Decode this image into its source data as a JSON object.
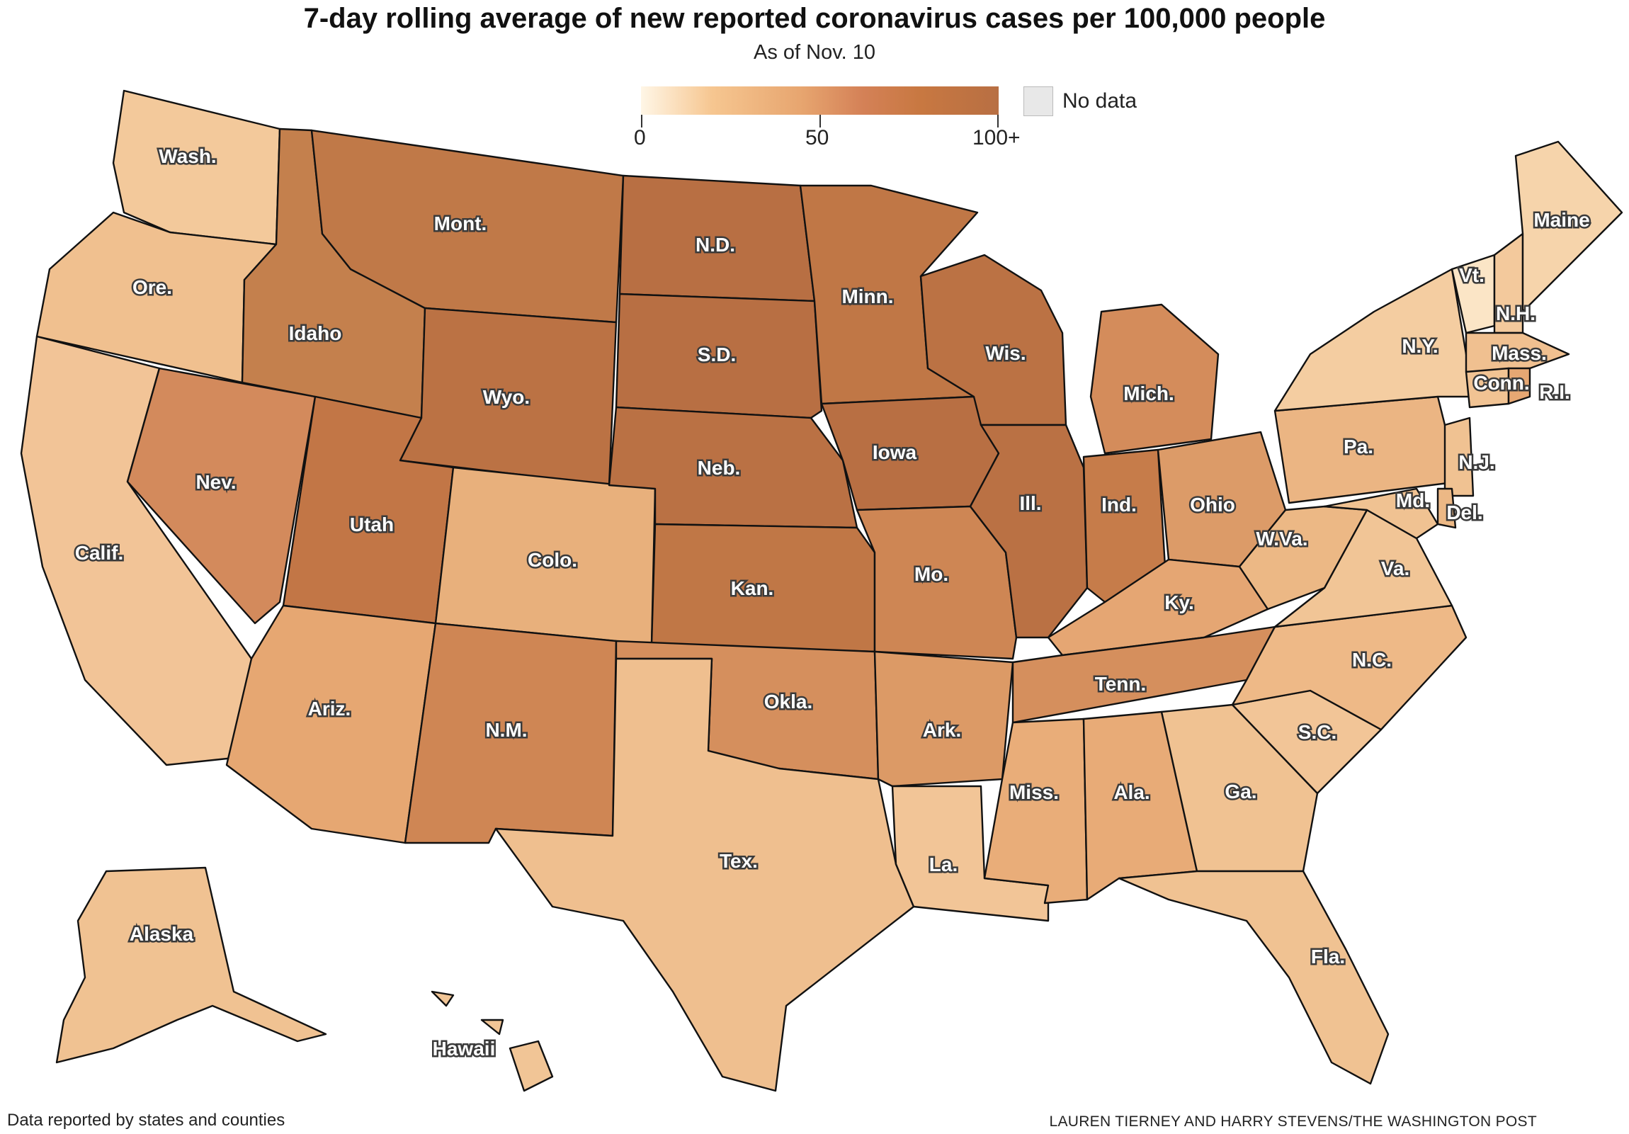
{
  "header": {
    "title": "7-day rolling average of new reported coronavirus cases per 100,000 people",
    "subtitle": "As of Nov. 10"
  },
  "legend": {
    "ticks": [
      "0",
      "50",
      "100+"
    ],
    "no_data_label": "No data",
    "colors": [
      "#fff6e6",
      "#f6c690",
      "#e7a56f",
      "#d48157",
      "#c87841",
      "#b86f43"
    ],
    "no_data_color": "#e8e8e8"
  },
  "states": [
    {
      "label": "Wash.",
      "color": "#f3c99b"
    },
    {
      "label": "Ore.",
      "color": "#f0c08f"
    },
    {
      "label": "Calif.",
      "color": "#f2c497"
    },
    {
      "label": "Nev.",
      "color": "#d38a5c"
    },
    {
      "label": "Idaho",
      "color": "#c4804d"
    },
    {
      "label": "Mont.",
      "color": "#c07948"
    },
    {
      "label": "Wyo.",
      "color": "#bb7244"
    },
    {
      "label": "Utah",
      "color": "#c27646"
    },
    {
      "label": "Ariz.",
      "color": "#e6a772"
    },
    {
      "label": "Colo.",
      "color": "#e8b07c"
    },
    {
      "label": "N.M.",
      "color": "#cf8654"
    },
    {
      "label": "N.D.",
      "color": "#b86f43"
    },
    {
      "label": "S.D.",
      "color": "#b86f43"
    },
    {
      "label": "Neb.",
      "color": "#ba7144"
    },
    {
      "label": "Kan.",
      "color": "#c07746"
    },
    {
      "label": "Okla.",
      "color": "#d58f5d"
    },
    {
      "label": "Tex.",
      "color": "#efbf8f"
    },
    {
      "label": "Minn.",
      "color": "#c07746"
    },
    {
      "label": "Iowa",
      "color": "#b86f43"
    },
    {
      "label": "Mo.",
      "color": "#ce8654"
    },
    {
      "label": "Ark.",
      "color": "#dc9a66"
    },
    {
      "label": "La.",
      "color": "#f2c597"
    },
    {
      "label": "Wis.",
      "color": "#bb7244"
    },
    {
      "label": "Ill.",
      "color": "#ba7144"
    },
    {
      "label": "Mich.",
      "color": "#d48c5b"
    },
    {
      "label": "Ind.",
      "color": "#c67c4a"
    },
    {
      "label": "Ohio",
      "color": "#dc9b68"
    },
    {
      "label": "Ky.",
      "color": "#e5a673"
    },
    {
      "label": "Tenn.",
      "color": "#d58f5d"
    },
    {
      "label": "Miss.",
      "color": "#e9ad79"
    },
    {
      "label": "Ala.",
      "color": "#e8ab77"
    },
    {
      "label": "Ga.",
      "color": "#f0c292"
    },
    {
      "label": "Fla.",
      "color": "#f0c292"
    },
    {
      "label": "S.C.",
      "color": "#f2c597"
    },
    {
      "label": "N.C.",
      "color": "#eeb987"
    },
    {
      "label": "Va.",
      "color": "#f1c596"
    },
    {
      "label": "W.Va.",
      "color": "#ecb885"
    },
    {
      "label": "Pa.",
      "color": "#ebb583"
    },
    {
      "label": "N.Y.",
      "color": "#f4cda1"
    },
    {
      "label": "Vt.",
      "color": "#fbe5c6"
    },
    {
      "label": "N.H.",
      "color": "#f3c99c"
    },
    {
      "label": "Maine",
      "color": "#f6d4ab"
    },
    {
      "label": "Mass.",
      "color": "#f0c090"
    },
    {
      "label": "Conn.",
      "color": "#f1c393"
    },
    {
      "label": "R.I.",
      "color": "#e6a773"
    },
    {
      "label": "N.J.",
      "color": "#f0c292"
    },
    {
      "label": "Md.",
      "color": "#f0c292"
    },
    {
      "label": "Del.",
      "color": "#ecb885"
    },
    {
      "label": "Alaska",
      "color": "#f0c292"
    },
    {
      "label": "Hawaii",
      "color": "#f1c596"
    }
  ],
  "footer": {
    "source": "Data reported by states and counties",
    "credit": "LAUREN TIERNEY AND HARRY STEVENS/THE WASHINGTON POST"
  }
}
